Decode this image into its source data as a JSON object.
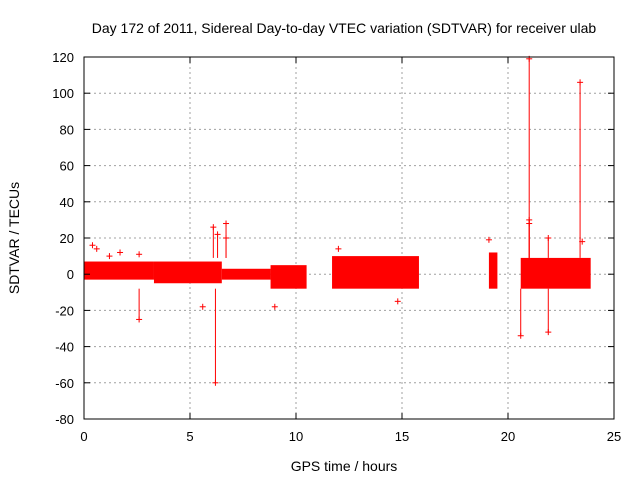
{
  "chart_data": {
    "type": "scatter",
    "title": "Day 172 of 2011, Sidereal Day-to-day VTEC variation (SDTVAR) for receiver ulab",
    "xlabel": "GPS time / hours",
    "ylabel": "SDTVAR / TECUs",
    "xlim": [
      0,
      25
    ],
    "ylim": [
      -80,
      120
    ],
    "xticks": [
      0,
      5,
      10,
      15,
      20,
      25
    ],
    "yticks": [
      -80,
      -60,
      -40,
      -20,
      0,
      20,
      40,
      60,
      80,
      100,
      120
    ],
    "grid": true,
    "marker": "plus",
    "color": "#ff0000",
    "segments": [
      {
        "name": "seg1",
        "x_start": 0.0,
        "x_end": 3.3,
        "y_low": -3,
        "y_high": 7
      },
      {
        "name": "seg2",
        "x_start": 3.3,
        "x_end": 6.5,
        "y_low": -5,
        "y_high": 7
      },
      {
        "name": "seg3",
        "x_start": 6.5,
        "x_end": 8.8,
        "y_low": -3,
        "y_high": 3
      },
      {
        "name": "seg4",
        "x_start": 8.8,
        "x_end": 10.5,
        "y_low": -8,
        "y_high": 5
      },
      {
        "name": "seg5",
        "x_start": 11.7,
        "x_end": 15.8,
        "y_low": -8,
        "y_high": 10
      },
      {
        "name": "seg6",
        "x_start": 19.1,
        "x_end": 19.5,
        "y_low": -8,
        "y_high": 12
      },
      {
        "name": "seg7",
        "x_start": 20.6,
        "x_end": 23.9,
        "y_low": -8,
        "y_high": 9
      }
    ],
    "outliers": [
      {
        "x": 0.4,
        "y": 16
      },
      {
        "x": 0.6,
        "y": 14
      },
      {
        "x": 1.2,
        "y": 10
      },
      {
        "x": 1.7,
        "y": 12
      },
      {
        "x": 2.6,
        "y": 11
      },
      {
        "x": 2.6,
        "y": -25
      },
      {
        "x": 5.6,
        "y": -18
      },
      {
        "x": 6.1,
        "y": 26
      },
      {
        "x": 6.2,
        "y": -60
      },
      {
        "x": 6.3,
        "y": 22
      },
      {
        "x": 6.7,
        "y": 28
      },
      {
        "x": 6.7,
        "y": 20
      },
      {
        "x": 9.0,
        "y": -18
      },
      {
        "x": 12.0,
        "y": 14
      },
      {
        "x": 14.8,
        "y": -15
      },
      {
        "x": 19.1,
        "y": 19
      },
      {
        "x": 20.6,
        "y": -34
      },
      {
        "x": 21.0,
        "y": 30
      },
      {
        "x": 21.0,
        "y": 28
      },
      {
        "x": 21.0,
        "y": 119
      },
      {
        "x": 21.9,
        "y": 20
      },
      {
        "x": 21.9,
        "y": -32
      },
      {
        "x": 23.4,
        "y": 106
      },
      {
        "x": 23.5,
        "y": 18
      }
    ]
  }
}
